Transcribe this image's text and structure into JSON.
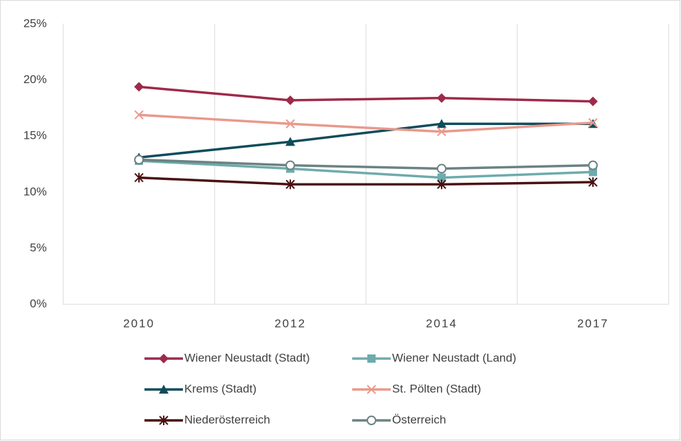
{
  "chart_data": {
    "type": "line",
    "categories": [
      "2010",
      "2012",
      "2014",
      "2017"
    ],
    "series": [
      {
        "name": "Wiener Neustadt (Stadt)",
        "color": "#9e2a4b",
        "marker": "diamond",
        "values": [
          19.4,
          18.2,
          18.4,
          18.1
        ]
      },
      {
        "name": "Wiener Neustadt (Land)",
        "color": "#6eabad",
        "marker": "square",
        "values": [
          12.8,
          12.1,
          11.3,
          11.8
        ]
      },
      {
        "name": "Krems (Stadt)",
        "color": "#0f4c5c",
        "marker": "triangle",
        "values": [
          13.1,
          14.5,
          16.1,
          16.1
        ]
      },
      {
        "name": "St. Pölten (Stadt)",
        "color": "#e9998c",
        "marker": "x",
        "values": [
          16.9,
          16.1,
          15.4,
          16.2
        ]
      },
      {
        "name": "Niederösterreich",
        "color": "#4b1010",
        "marker": "asterisk",
        "values": [
          11.3,
          10.7,
          10.7,
          10.9
        ]
      },
      {
        "name": "Österreich",
        "color": "#6b8282",
        "marker": "circle",
        "values": [
          12.9,
          12.4,
          12.1,
          12.4
        ]
      }
    ],
    "ylim": [
      0,
      25
    ],
    "yticks": [
      {
        "value": 0,
        "label": "0%"
      },
      {
        "value": 5,
        "label": "5%"
      },
      {
        "value": 10,
        "label": "10%"
      },
      {
        "value": 15,
        "label": "15%"
      },
      {
        "value": 20,
        "label": "20%"
      },
      {
        "value": 25,
        "label": "25%"
      }
    ],
    "legend": "bottom"
  }
}
